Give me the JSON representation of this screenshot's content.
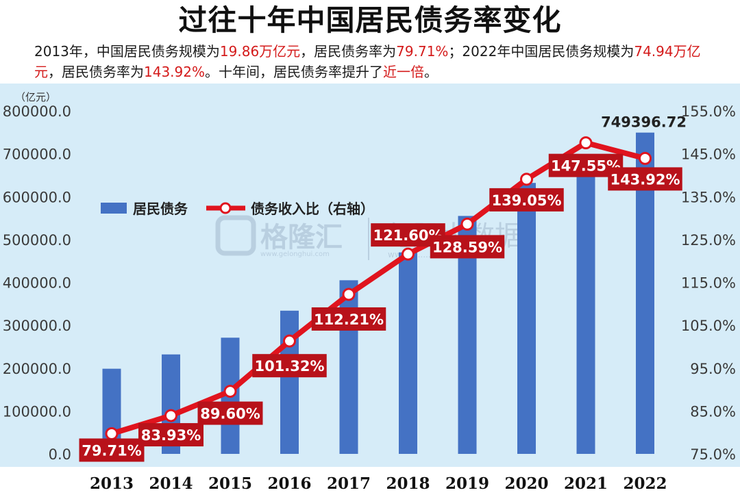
{
  "title": "过往十年中国居民债务率变化",
  "subtitle": {
    "parts": [
      {
        "text": "2013年，中国居民债务规模为",
        "hl": false
      },
      {
        "text": "19.86万亿元",
        "hl": true
      },
      {
        "text": "，居民债务率为",
        "hl": false
      },
      {
        "text": "79.71%",
        "hl": true
      },
      {
        "text": "；2022年中国居民债务规模为",
        "hl": false
      },
      {
        "text": "74.94万亿元",
        "hl": true
      },
      {
        "text": "，居民债务率为",
        "hl": false
      },
      {
        "text": "143.92%",
        "hl": true
      },
      {
        "text": "。十年间，居民债务率提升了",
        "hl": false
      },
      {
        "text": "近一倍",
        "hl": true
      },
      {
        "text": "。",
        "hl": false
      }
    ]
  },
  "colors": {
    "bar": "#4472c4",
    "line": "#e0141e",
    "label_bg": "#b8121a",
    "highlight_text": "#d41a1a"
  },
  "watermark": {
    "logo_text": "格隆汇",
    "logo_url": "www.gelonghui.com",
    "right_text": "勾股大数据",
    "right_url": "www.g.......com"
  },
  "chart_data": {
    "type": "bar+line",
    "categories": [
      "2013",
      "2014",
      "2015",
      "2016",
      "2017",
      "2018",
      "2019",
      "2020",
      "2021",
      "2022"
    ],
    "series": [
      {
        "name": "居民债务",
        "type": "bar",
        "axis": "left",
        "values": [
          198600,
          232000,
          271000,
          334000,
          405000,
          470000,
          555000,
          632000,
          690000,
          749396.72
        ]
      },
      {
        "name": "债务收入比（右轴）",
        "type": "line",
        "axis": "right",
        "values": [
          79.71,
          83.93,
          89.6,
          101.32,
          112.21,
          121.6,
          128.59,
          139.05,
          147.55,
          143.92
        ],
        "labels": [
          "79.71%",
          "83.93%",
          "89.60%",
          "101.32%",
          "112.21%",
          "121.60%",
          "128.59%",
          "139.05%",
          "147.55%",
          "143.92%"
        ]
      }
    ],
    "bar_top_label": {
      "index": 9,
      "text": "749396.72"
    },
    "left_axis": {
      "unit": "（亿元）",
      "ylim": [
        0,
        800000
      ],
      "ticks": [
        0,
        100000,
        200000,
        300000,
        400000,
        500000,
        600000,
        700000,
        800000
      ],
      "tick_labels": [
        "0.0",
        "100000.0",
        "200000.0",
        "300000.0",
        "400000.0",
        "500000.0",
        "600000.0",
        "700000.0",
        "800000.0"
      ]
    },
    "right_axis": {
      "ylim": [
        75,
        155
      ],
      "ticks": [
        75,
        85,
        95,
        105,
        115,
        125,
        135,
        145,
        155
      ],
      "tick_labels": [
        "75.0%",
        "85.0%",
        "95.0%",
        "105.0%",
        "115.0%",
        "125.0%",
        "135.0%",
        "145.0%",
        "155.0%"
      ]
    },
    "legend": {
      "position": "upper-left",
      "items": [
        "居民债务",
        "债务收入比（右轴）"
      ]
    },
    "grid": false
  }
}
